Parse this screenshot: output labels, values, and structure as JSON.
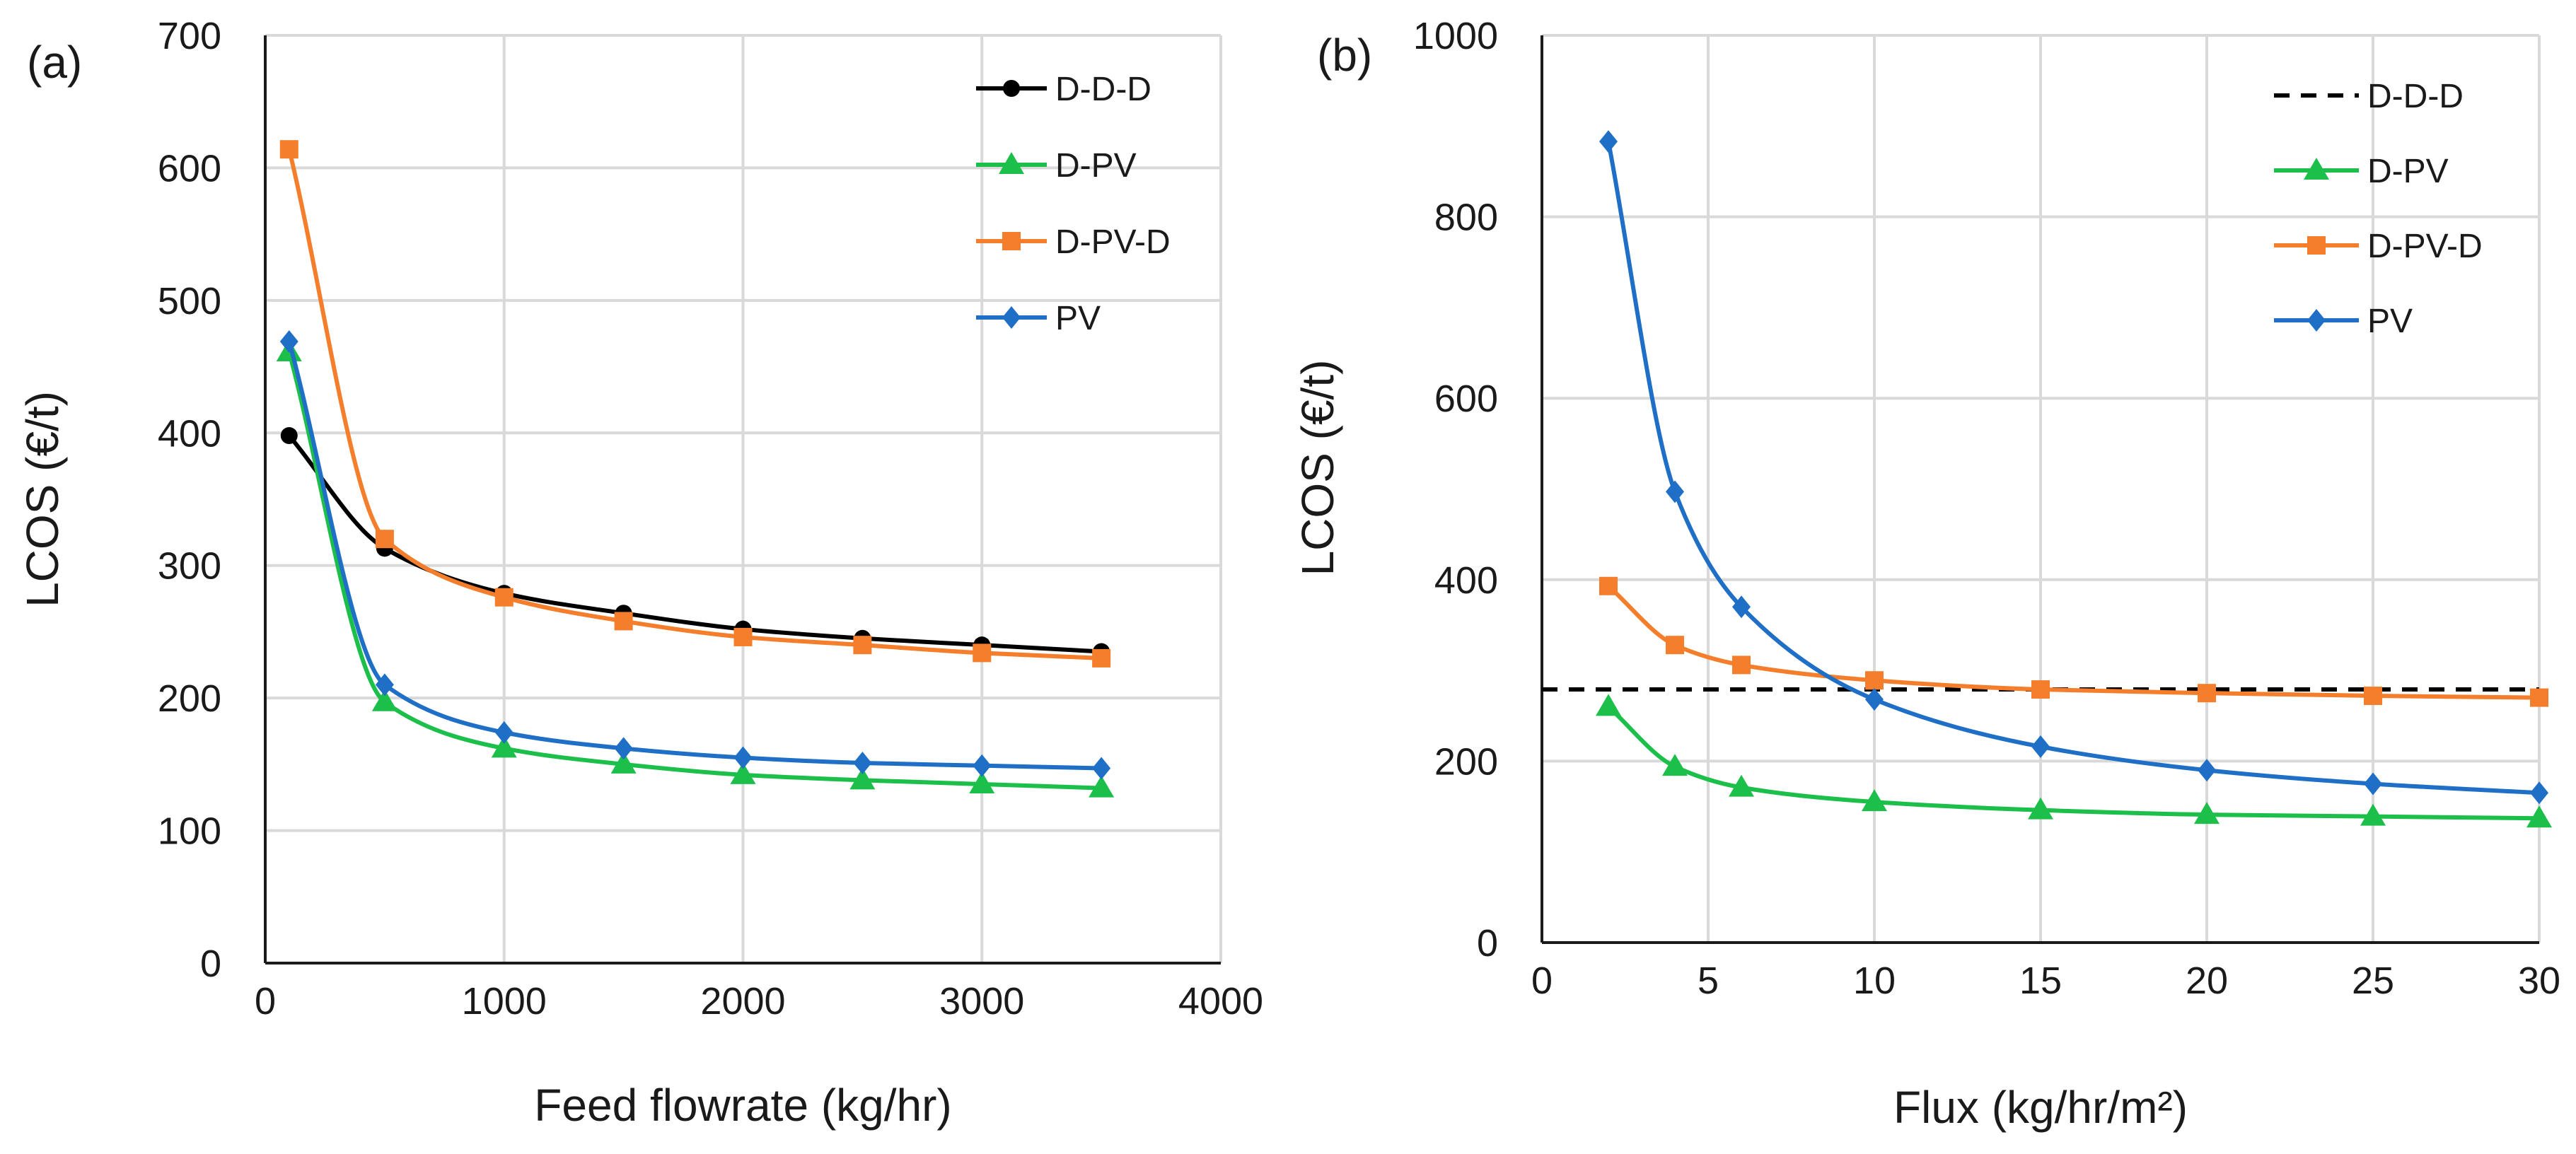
{
  "figure": {
    "title": ""
  },
  "colors": {
    "D-D-D": "#000000",
    "D-PV": "#1dbf4b",
    "D-PV-D": "#f47e2b",
    "PV": "#1f6fc6"
  },
  "chart_data": [
    {
      "type": "line",
      "panel_label": "(a)",
      "title": "",
      "xlabel": "Feed flowrate (kg/hr)",
      "ylabel": "LCOS (€/t)",
      "xlim": [
        0,
        4000
      ],
      "ylim": [
        0,
        700
      ],
      "x_ticks": [
        0,
        1000,
        2000,
        3000,
        4000
      ],
      "y_ticks": [
        0,
        100,
        200,
        300,
        400,
        500,
        600,
        700
      ],
      "grid": true,
      "legend_position": "top-right",
      "series": [
        {
          "name": "D-D-D",
          "marker": "circle",
          "dashed": false,
          "x": [
            100,
            500,
            1000,
            1500,
            2000,
            2500,
            3000,
            3500
          ],
          "y": [
            398,
            313,
            279,
            264,
            252,
            245,
            240,
            235
          ]
        },
        {
          "name": "D-PV",
          "marker": "triangle",
          "dashed": false,
          "x": [
            100,
            500,
            1000,
            1500,
            2000,
            2500,
            3000,
            3500
          ],
          "y": [
            461,
            197,
            162,
            150,
            142,
            138,
            135,
            132
          ]
        },
        {
          "name": "D-PV-D",
          "marker": "square",
          "dashed": false,
          "x": [
            100,
            500,
            1000,
            1500,
            2000,
            2500,
            3000,
            3500
          ],
          "y": [
            614,
            320,
            276,
            258,
            246,
            240,
            234,
            230
          ]
        },
        {
          "name": "PV",
          "marker": "diamond",
          "dashed": false,
          "x": [
            100,
            500,
            1000,
            1500,
            2000,
            2500,
            3000,
            3500
          ],
          "y": [
            469,
            210,
            174,
            162,
            155,
            151,
            149,
            147
          ]
        }
      ]
    },
    {
      "type": "line",
      "panel_label": "(b)",
      "title": "",
      "xlabel": "Flux (kg/hr/m²)",
      "ylabel": "LCOS (€/t)",
      "xlim": [
        0,
        30
      ],
      "ylim": [
        0,
        1000
      ],
      "x_ticks": [
        0,
        5,
        10,
        15,
        20,
        25,
        30
      ],
      "y_ticks": [
        0,
        200,
        400,
        600,
        800,
        1000
      ],
      "grid": true,
      "legend_position": "top-right",
      "series": [
        {
          "name": "D-D-D",
          "marker": "none",
          "dashed": true,
          "x": [
            0,
            30
          ],
          "y": [
            279,
            279
          ]
        },
        {
          "name": "D-PV",
          "marker": "triangle",
          "dashed": false,
          "x": [
            2,
            4,
            6,
            10,
            15,
            20,
            25,
            30
          ],
          "y": [
            260,
            194,
            171,
            155,
            146,
            141,
            139,
            137
          ]
        },
        {
          "name": "D-PV-D",
          "marker": "square",
          "dashed": false,
          "x": [
            2,
            4,
            6,
            10,
            15,
            20,
            25,
            30
          ],
          "y": [
            393,
            328,
            306,
            289,
            279,
            275,
            272,
            270
          ]
        },
        {
          "name": "PV",
          "marker": "diamond",
          "dashed": false,
          "x": [
            2,
            4,
            6,
            10,
            15,
            20,
            25,
            30
          ],
          "y": [
            883,
            497,
            370,
            268,
            216,
            190,
            175,
            165
          ]
        }
      ]
    }
  ]
}
